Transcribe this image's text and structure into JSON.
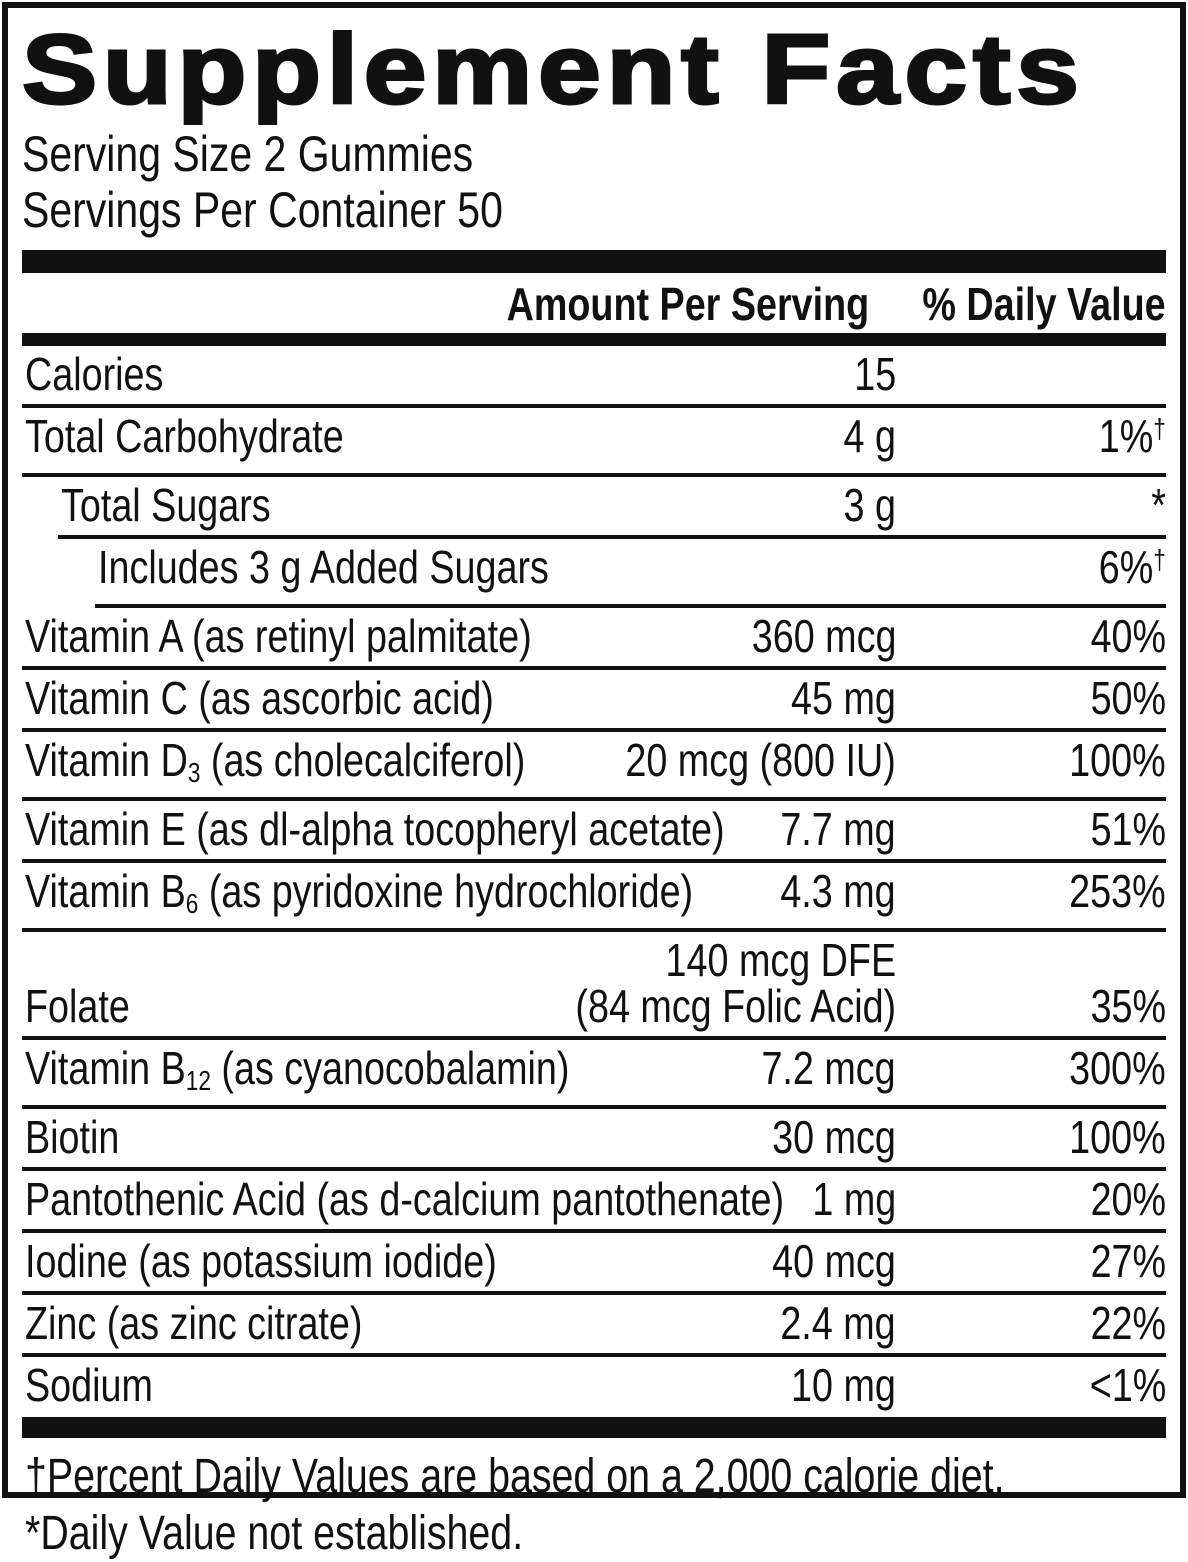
{
  "label": {
    "title": "Supplement Facts",
    "serving_size": "Serving Size 2 Gummies",
    "servings_per_container": "Servings Per Container 50",
    "columns": {
      "amount": "Amount Per Serving",
      "daily_value": "% Daily Value"
    },
    "rows": [
      {
        "name_pre": "Calories",
        "indent": 0,
        "amount": "15",
        "dv": ""
      },
      {
        "name_pre": "Total Carbohydrate",
        "indent": 0,
        "amount": "4 g",
        "dv": "1%",
        "dv_sup": "†"
      },
      {
        "name_pre": "Total Sugars",
        "indent": 1,
        "amount": "3 g",
        "dv": "*"
      },
      {
        "name_pre": "Includes 3 g Added Sugars",
        "indent": 2,
        "amount": "",
        "dv": "6%",
        "dv_sup": "†"
      },
      {
        "name_pre": "Vitamin A (as retinyl palmitate)",
        "indent": 0,
        "amount": "360 mcg",
        "dv": "40%"
      },
      {
        "name_pre": "Vitamin C (as ascorbic acid)",
        "indent": 0,
        "amount": "45 mg",
        "dv": "50%"
      },
      {
        "name_pre": "Vitamin D",
        "name_sub": "3",
        "name_post": " (as cholecalciferol)",
        "indent": 0,
        "amount": "20 mcg (800 IU)",
        "dv": "100%"
      },
      {
        "name_pre": "Vitamin E (as dl-alpha tocopheryl acetate)",
        "indent": 0,
        "amount": "7.7 mg",
        "dv": "51%"
      },
      {
        "name_pre": "Vitamin B",
        "name_sub": "6",
        "name_post": " (as pyridoxine hydrochloride)",
        "indent": 0,
        "amount": "4.3 mg",
        "dv": "253%"
      },
      {
        "name_pre": "Folate",
        "indent": 0,
        "amount": "140 mcg DFE",
        "amount2": "(84 mcg Folic Acid)",
        "dv": "35%"
      },
      {
        "name_pre": "Vitamin B",
        "name_sub": "12",
        "name_post": " (as cyanocobalamin)",
        "indent": 0,
        "amount": "7.2 mcg",
        "dv": "300%"
      },
      {
        "name_pre": "Biotin",
        "indent": 0,
        "amount": "30 mcg",
        "dv": "100%"
      },
      {
        "name_pre": "Pantothenic Acid (as d-calcium pantothenate)",
        "indent": 0,
        "amount": "1 mg",
        "dv": "20%"
      },
      {
        "name_pre": "Iodine (as potassium iodide)",
        "indent": 0,
        "amount": "40 mcg",
        "dv": "27%"
      },
      {
        "name_pre": "Zinc (as zinc citrate)",
        "indent": 0,
        "amount": "2.4 mg",
        "dv": "22%"
      },
      {
        "name_pre": "Sodium",
        "indent": 0,
        "amount": "10 mg",
        "dv": "<1%"
      }
    ],
    "footnotes": [
      "†Percent Daily Values are based on a 2,000 calorie diet.",
      "*Daily Value not established."
    ],
    "colors": {
      "ink": "#111111",
      "background": "#ffffff"
    }
  }
}
